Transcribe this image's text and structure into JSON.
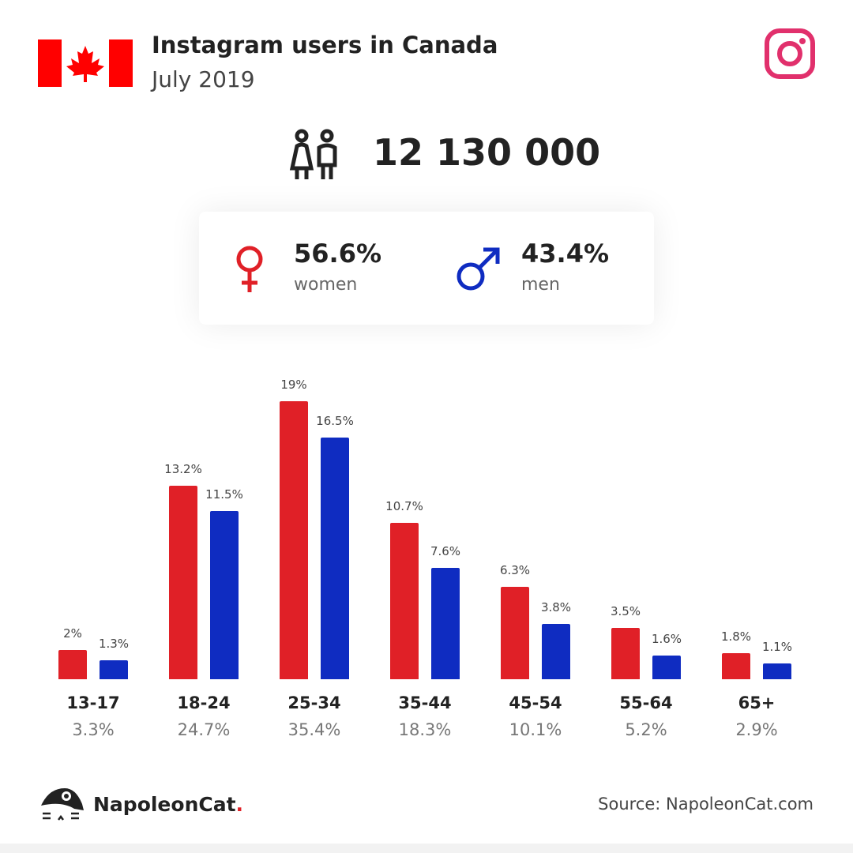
{
  "header": {
    "title": "Instagram users in Canada",
    "subtitle": "July 2019",
    "flag-icon": "canada-flag",
    "platform_icon": "instagram-icon"
  },
  "total": {
    "value": "12 130 000",
    "icon": "people-icon"
  },
  "gender": {
    "women": {
      "pct": "56.6%",
      "label": "women",
      "color": "#e02027"
    },
    "men": {
      "pct": "43.4%",
      "label": "men",
      "color": "#0f2cc1"
    }
  },
  "chart_data": {
    "type": "bar",
    "categories": [
      "13-17",
      "18-24",
      "25-34",
      "35-44",
      "45-54",
      "55-64",
      "65+"
    ],
    "category_totals": [
      "3.3%",
      "24.7%",
      "35.4%",
      "18.3%",
      "10.1%",
      "5.2%",
      "2.9%"
    ],
    "series": [
      {
        "name": "women",
        "color": "#e02027",
        "values": [
          2,
          13.2,
          19,
          10.7,
          6.3,
          3.5,
          1.8
        ],
        "labels": [
          "2%",
          "13.2%",
          "19%",
          "10.7%",
          "6.3%",
          "3.5%",
          "1.8%"
        ]
      },
      {
        "name": "men",
        "color": "#0f2cc1",
        "values": [
          1.3,
          11.5,
          16.5,
          7.6,
          3.8,
          1.6,
          1.1
        ],
        "labels": [
          "1.3%",
          "11.5%",
          "16.5%",
          "7.6%",
          "3.8%",
          "1.6%",
          "1.1%"
        ]
      }
    ],
    "ylim": [
      0,
      19
    ],
    "grid": false
  },
  "footer": {
    "brand": "NapoleonCat",
    "brand_dot": ".",
    "source": "Source: NapoleonCat.com"
  }
}
